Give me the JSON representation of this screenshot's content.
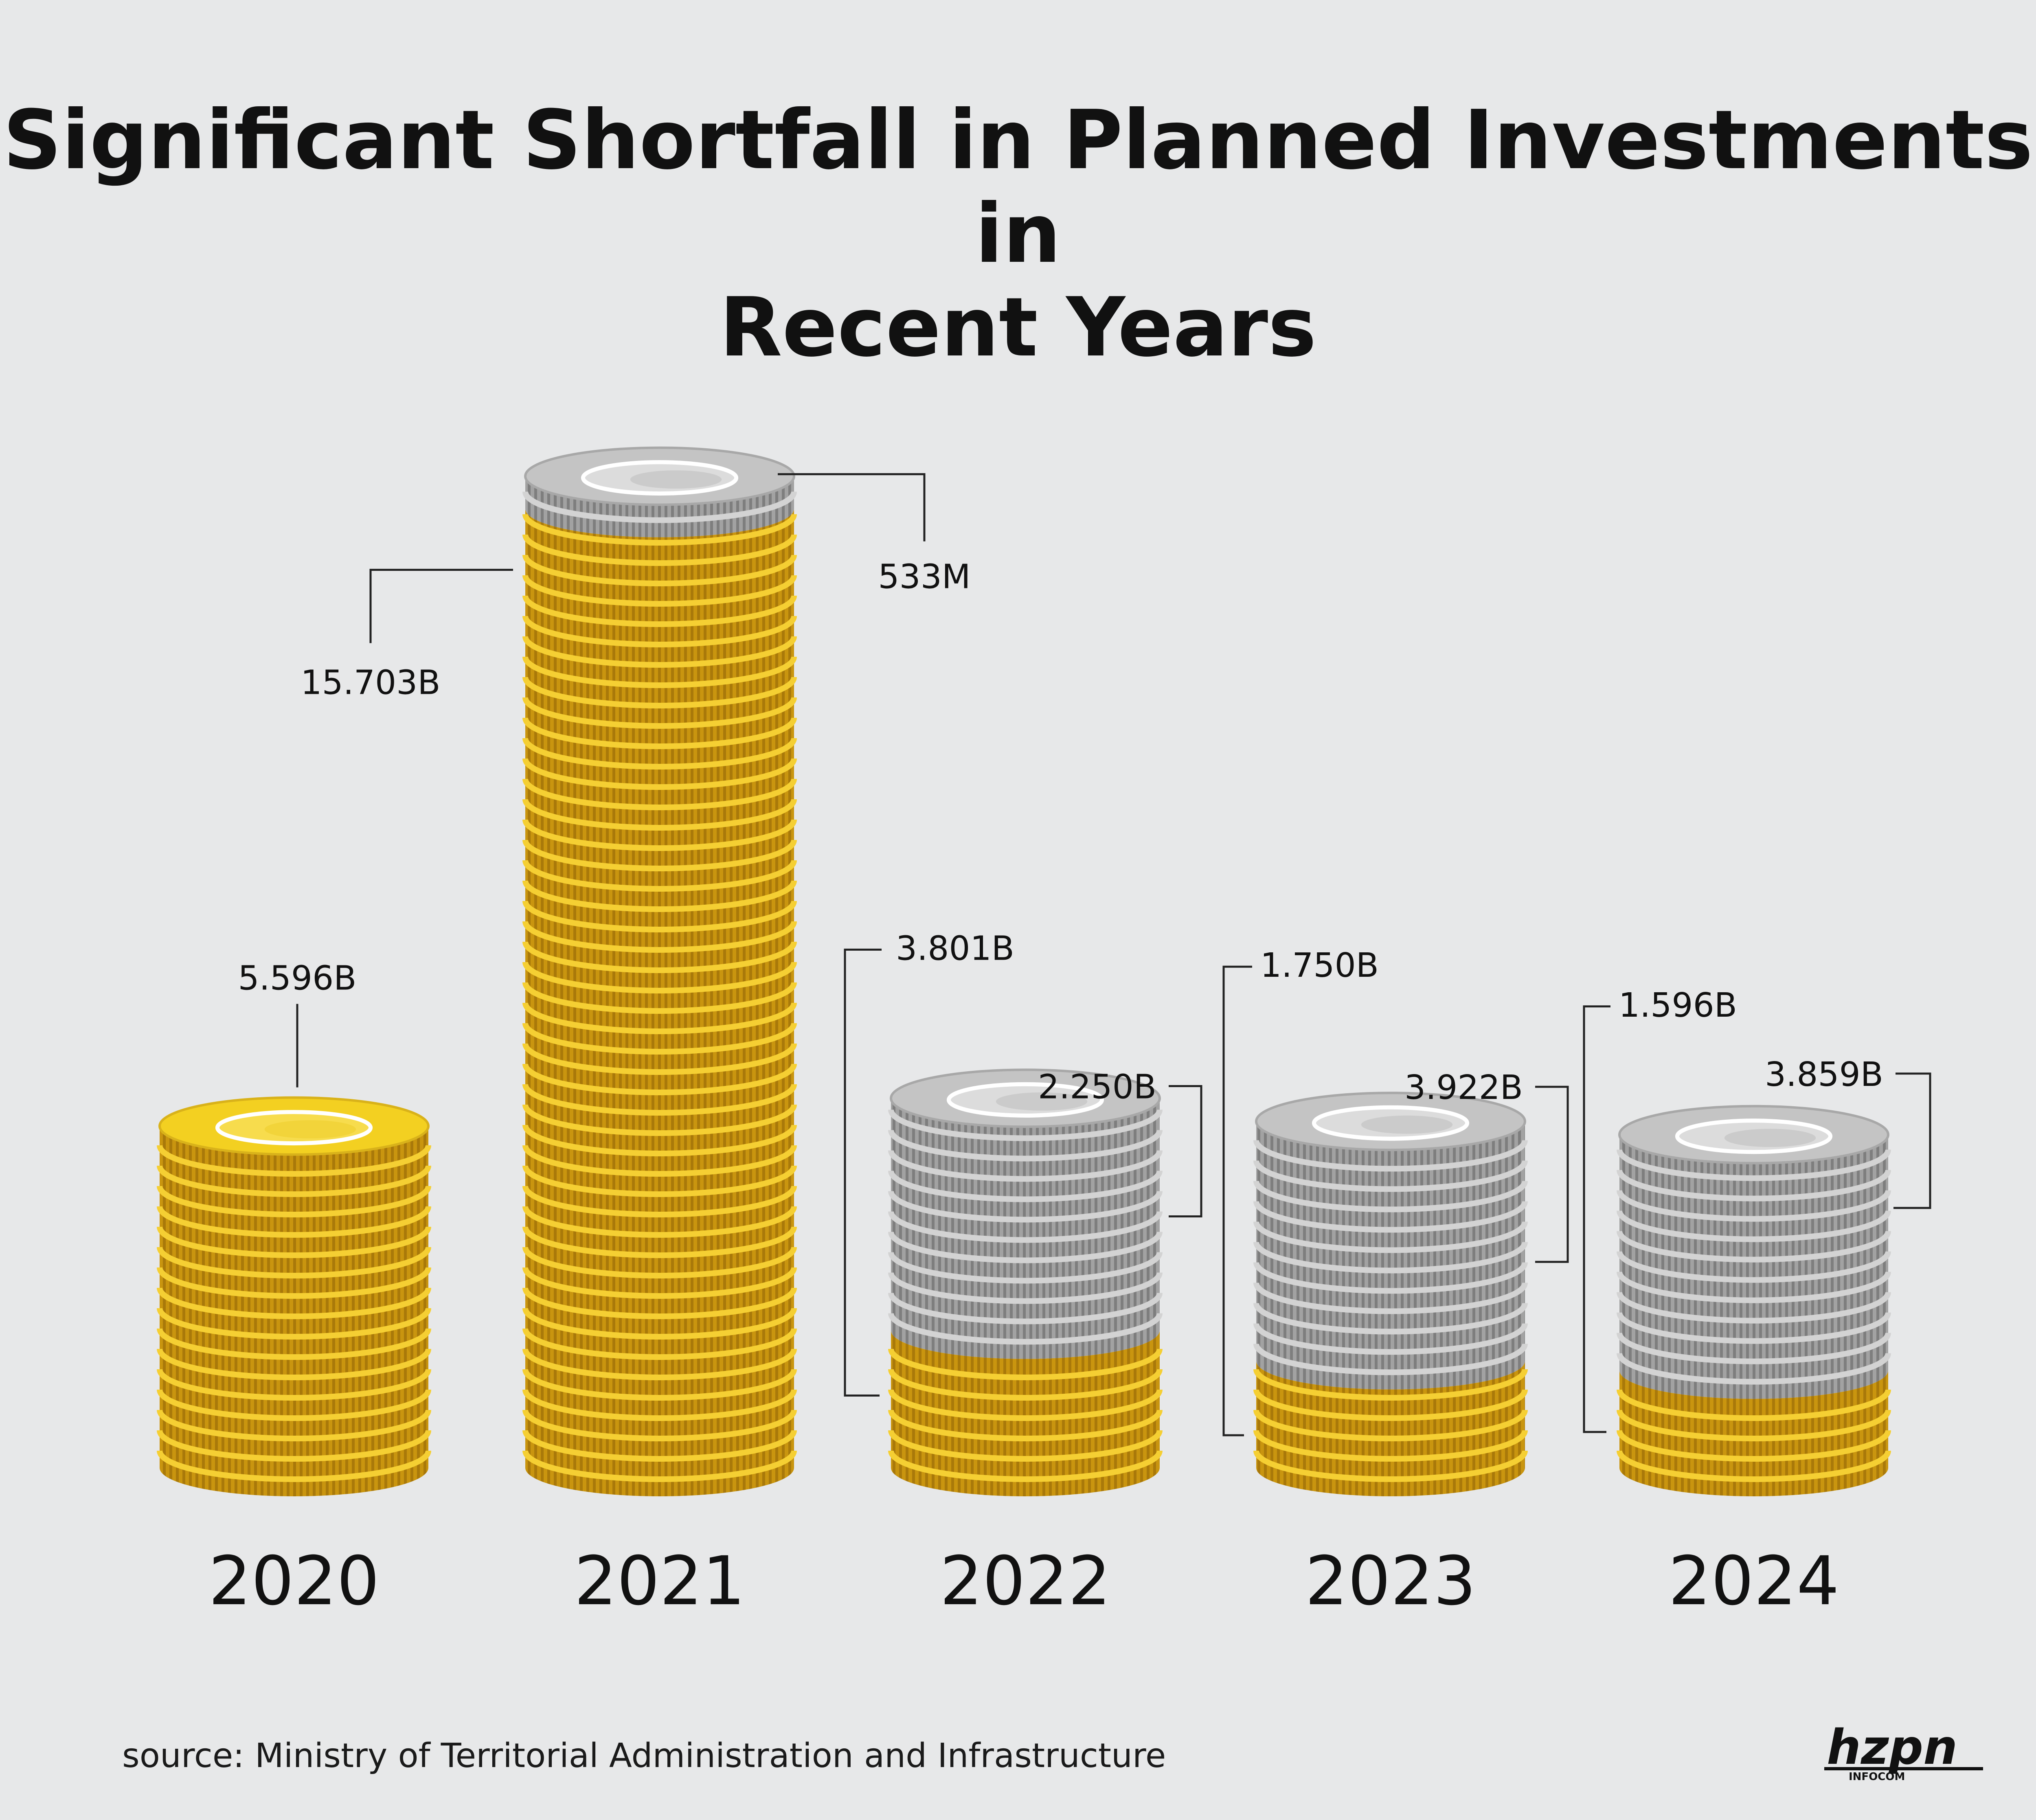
{
  "title_bold": "Significant Shortfall",
  "title_rest": " in Planned Investments in",
  "title_line2": "Recent Years",
  "source": "source: Ministry of Territorial Administration and Infrastructure",
  "logo_text": "hzpn",
  "logo_sub": "INFOCOM",
  "colors": {
    "background": "#e7e8e9",
    "gold": "#e7b21f",
    "gold_dark": "#b8860e",
    "silver": "#9d9d9d",
    "silver_dark": "#7c7c7c"
  },
  "chart_data": {
    "type": "bar",
    "stacked": true,
    "categories": [
      "2020",
      "2021",
      "2022",
      "2023",
      "2024"
    ],
    "series": [
      {
        "color": "gold",
        "values": [
          5.596,
          15.703,
          2.25,
          1.75,
          1.596
        ],
        "labels": [
          "5.596B",
          "15.703B",
          "2.250B",
          "1.750B",
          "1.596B"
        ]
      },
      {
        "color": "silver",
        "values": [
          0,
          0.533,
          3.801,
          3.922,
          3.859
        ],
        "labels": [
          "",
          "533M",
          "3.801B",
          "3.922B",
          "3.859B"
        ]
      }
    ],
    "unit": "B"
  }
}
